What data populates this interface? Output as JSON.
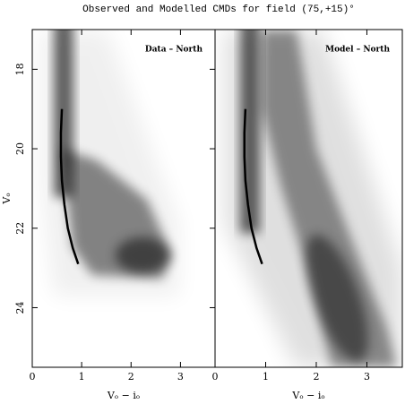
{
  "title": "Observed and Modelled CMDs for field  (75,+15)°",
  "chart_data": [
    {
      "type": "line",
      "title": "Data – North",
      "xlabel": "Vₒ − iₒ",
      "ylabel": "Vₒ",
      "xlim": [
        0,
        3.7
      ],
      "ylim": [
        25.5,
        17
      ],
      "xticks": [
        0,
        1,
        2,
        3
      ],
      "yticks": [
        18,
        20,
        22,
        24
      ],
      "series": [
        {
          "color": "#000000",
          "x": [
            0.6,
            0.58,
            0.58,
            0.6,
            0.65,
            0.72,
            0.82,
            0.93
          ],
          "values": [
            19.0,
            19.6,
            20.2,
            20.8,
            21.4,
            22.0,
            22.5,
            22.9
          ]
        }
      ]
    },
    {
      "type": "line",
      "title": "Model – North",
      "xlabel": "Vₒ − iₒ",
      "xlim": [
        0,
        3.7
      ],
      "ylim": [
        25.5,
        17
      ],
      "xticks": [
        0,
        1,
        2,
        3
      ],
      "series": [
        {
          "color": "#000000",
          "x": [
            0.6,
            0.58,
            0.58,
            0.6,
            0.65,
            0.72,
            0.82,
            0.93
          ],
          "values": [
            19.0,
            19.6,
            20.2,
            20.8,
            21.4,
            22.0,
            22.5,
            22.9
          ]
        }
      ]
    }
  ]
}
